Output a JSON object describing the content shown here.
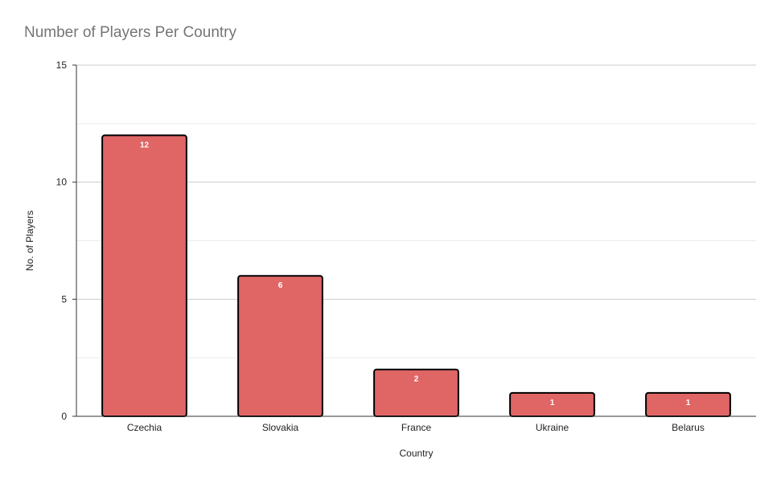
{
  "chart_data": {
    "type": "bar",
    "title": "Number of Players Per Country",
    "xlabel": "Country",
    "ylabel": "No. of Players",
    "categories": [
      "Czechia",
      "Slovakia",
      "France",
      "Ukraine",
      "Belarus"
    ],
    "values": [
      12,
      6,
      2,
      1,
      1
    ],
    "ylim": [
      0,
      15
    ],
    "yticks": [
      0,
      5,
      10,
      15
    ],
    "grid": true,
    "legend": "none",
    "colors": {
      "bar_fill": "#e06666",
      "bar_stroke": "#000000",
      "gridline": "#cccccc",
      "minor_gridline": "#ebebeb",
      "data_label": "#ffffff",
      "title": "#757575",
      "axis_text": "#222222"
    }
  }
}
